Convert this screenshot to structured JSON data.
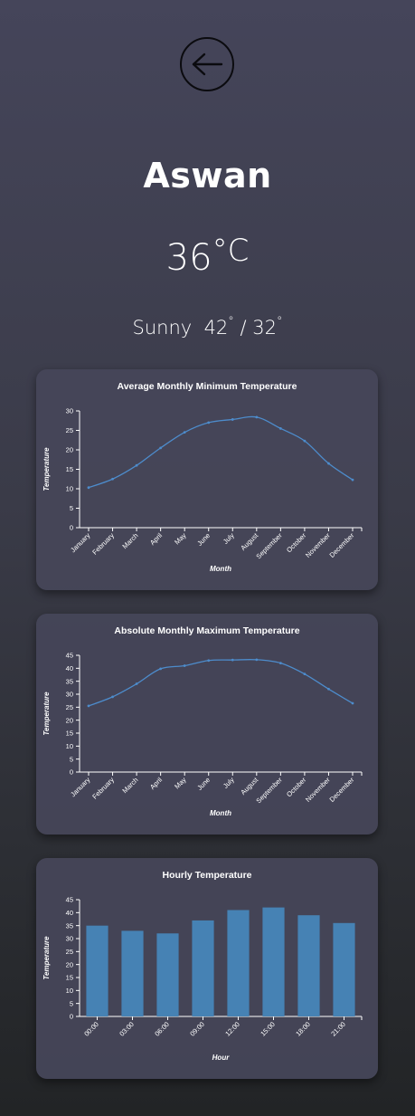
{
  "header": {
    "back_icon": "arrow-left-icon",
    "city": "Aswan",
    "temperature": "36",
    "unit": "°C",
    "condition": "Sunny",
    "high": "42",
    "low": "32",
    "degree": "°",
    "separator": "/"
  },
  "colors": {
    "line": "#4d8ccc",
    "bar": "#4682b4",
    "axis": "#ffffff"
  },
  "chart_data": [
    {
      "type": "line",
      "title": "Average Monthly Minimum Temperature",
      "xlabel": "Month",
      "ylabel": "Temperature",
      "categories": [
        "January",
        "February",
        "March",
        "April",
        "May",
        "June",
        "July",
        "August",
        "September",
        "October",
        "November",
        "December"
      ],
      "values": [
        10.3,
        12.5,
        16,
        20.5,
        24.5,
        27,
        27.8,
        28.4,
        25.5,
        22.3,
        16.5,
        12.3
      ],
      "ylim": [
        0,
        30
      ],
      "yticks": [
        0,
        5,
        10,
        15,
        20,
        25,
        30
      ]
    },
    {
      "type": "line",
      "title": "Absolute Monthly Maximum Temperature",
      "xlabel": "Month",
      "ylabel": "Temperature",
      "categories": [
        "January",
        "February",
        "March",
        "April",
        "May",
        "June",
        "July",
        "August",
        "September",
        "October",
        "November",
        "December"
      ],
      "values": [
        25.5,
        29,
        34,
        39.8,
        41,
        43,
        43.2,
        43.3,
        42,
        37.8,
        32,
        26.5
      ],
      "ylim": [
        0,
        45
      ],
      "yticks": [
        0,
        5,
        10,
        15,
        20,
        25,
        30,
        35,
        40,
        45
      ]
    },
    {
      "type": "bar",
      "title": "Hourly Temperature",
      "xlabel": "Hour",
      "ylabel": "Temperature",
      "categories": [
        "00:00",
        "03:00",
        "06:00",
        "09:00",
        "12:00",
        "15:00",
        "18:00",
        "21:00"
      ],
      "values": [
        35,
        33,
        32,
        37,
        41,
        42,
        39,
        36
      ],
      "ylim": [
        0,
        45
      ],
      "yticks": [
        0,
        5,
        10,
        15,
        20,
        25,
        30,
        35,
        40,
        45
      ]
    }
  ]
}
